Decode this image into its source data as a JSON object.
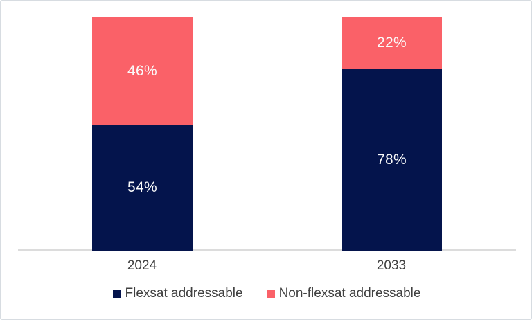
{
  "chart_data": {
    "type": "bar",
    "stacked": true,
    "orientation": "vertical",
    "categories": [
      "2024",
      "2033"
    ],
    "series": [
      {
        "name": "Flexsat addressable",
        "color": "#04144C",
        "values": [
          54,
          78
        ],
        "labels": [
          "54%",
          "78%"
        ]
      },
      {
        "name": "Non-flexsat addressable",
        "color": "#FA6168",
        "values": [
          46,
          22
        ],
        "labels": [
          "46%",
          "22%"
        ]
      }
    ],
    "value_range": [
      0,
      100
    ],
    "unit": "%",
    "title": "",
    "xlabel": "",
    "ylabel": "",
    "grid": false,
    "legend_position": "bottom",
    "data_label_color": "#FAFAFA",
    "axis_text_color": "#404040",
    "axis_line_color": "#DCDCDC"
  }
}
